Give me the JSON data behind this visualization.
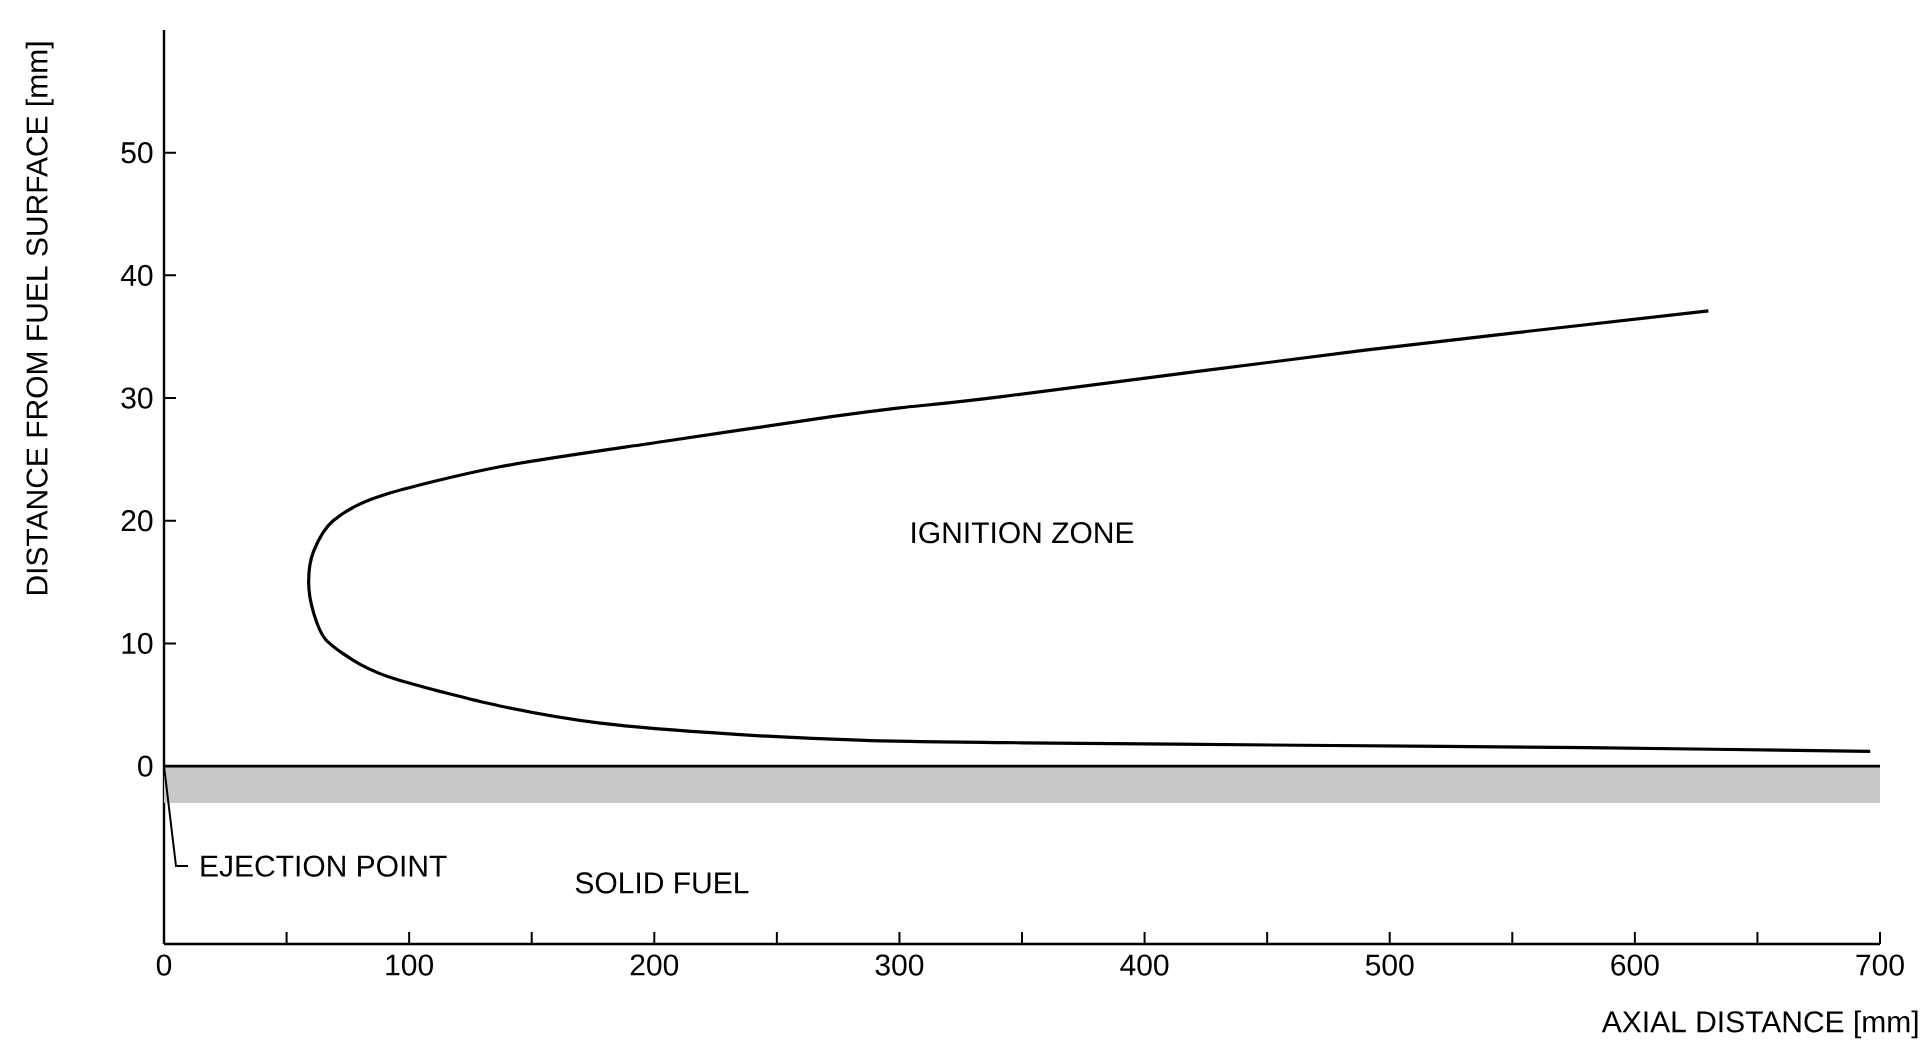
{
  "chart_data": {
    "type": "line",
    "xlabel": "AXIAL DISTANCE [mm]",
    "ylabel": "DISTANCE FROM FUEL SURFACE [mm]",
    "series": [
      {
        "color": "#000000",
        "x": [
          630,
          490,
          341,
          300,
          273,
          205,
          137,
          88,
          69,
          61,
          59,
          61,
          66,
          80,
          96,
          137,
          178,
          232,
          286,
          350,
          463,
          580,
          696
        ],
        "values": [
          37.1,
          33.9,
          30.1,
          29.2,
          28.5,
          26.5,
          24.4,
          22.0,
          20.0,
          17.5,
          15.0,
          12.5,
          10.3,
          8.3,
          7.0,
          4.9,
          3.5,
          2.6,
          2.1,
          1.9,
          1.7,
          1.5,
          1.2
        ]
      }
    ],
    "xlim": [
      0,
      700
    ],
    "ylim": [
      -14.5,
      60
    ],
    "xticks": [
      0,
      {
        "value": 50,
        "label": null
      },
      100,
      {
        "value": 150,
        "label": null
      },
      200,
      {
        "value": 250,
        "label": null
      },
      300,
      {
        "value": 350,
        "label": null
      },
      400,
      {
        "value": 450,
        "label": null
      },
      500,
      {
        "value": 550,
        "label": null
      },
      600,
      {
        "value": 650,
        "label": null
      },
      700
    ],
    "yticks": [
      0,
      10,
      20,
      30,
      40,
      50
    ],
    "bands": [
      {
        "axis": "y",
        "from": -3,
        "to": 0,
        "label": "SOLID FUEL",
        "color": "#c8c8c8"
      }
    ],
    "ref_lines": [
      {
        "axis": "y",
        "value": 0,
        "color": "#000000"
      }
    ],
    "annotations": [
      "IGNITION ZONE",
      {
        "text": "EJECTION POINT",
        "x": 0,
        "y": 0
      }
    ],
    "grid": false,
    "marker": "none",
    "line_style": "solid"
  }
}
